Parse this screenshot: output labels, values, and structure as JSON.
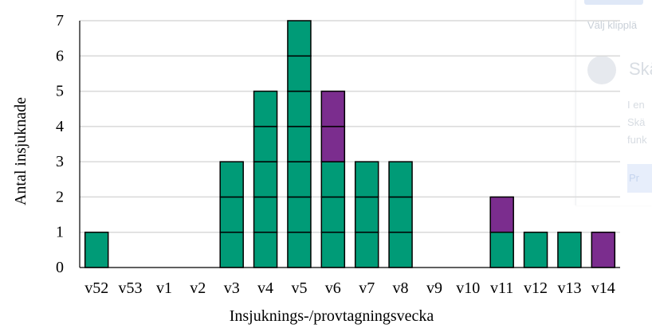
{
  "chart_data": {
    "type": "bar",
    "stacked": true,
    "unit_cells": true,
    "xlabel": "Insjuknings-/provtagningsvecka",
    "ylabel": "Antal insjuknade",
    "ylim": [
      0,
      7
    ],
    "yticks": [
      0,
      1,
      2,
      3,
      4,
      5,
      6,
      7
    ],
    "grid": "horizontal",
    "categories": [
      "v52",
      "v53",
      "v1",
      "v2",
      "v3",
      "v4",
      "v5",
      "v6",
      "v7",
      "v8",
      "v9",
      "v10",
      "v11",
      "v12",
      "v13",
      "v14"
    ],
    "series": [
      {
        "color": "#009b77",
        "values": [
          1,
          0,
          0,
          0,
          3,
          5,
          7,
          3,
          3,
          3,
          0,
          0,
          1,
          1,
          1,
          0
        ]
      },
      {
        "color": "#7b2d8e",
        "values": [
          0,
          0,
          0,
          0,
          0,
          0,
          0,
          2,
          0,
          0,
          0,
          0,
          1,
          0,
          0,
          1
        ]
      }
    ]
  },
  "background_panel": {
    "hint": "Välj klipplä",
    "heading": "Skä",
    "lines": [
      "I en",
      "Skä",
      "funk"
    ],
    "button": "Pr"
  }
}
